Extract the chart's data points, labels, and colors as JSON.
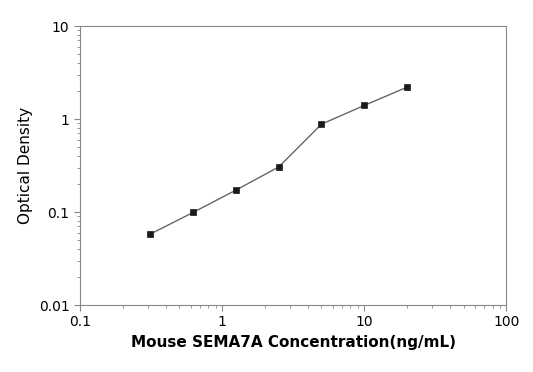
{
  "x_values": [
    0.313,
    0.625,
    1.25,
    2.5,
    5.0,
    10.0,
    20.0
  ],
  "y_values": [
    0.058,
    0.099,
    0.172,
    0.305,
    0.88,
    1.4,
    2.2
  ],
  "xlabel": "Mouse SEMA7A Concentration(ng/mL)",
  "ylabel": "Optical Density",
  "xlim": [
    0.1,
    100
  ],
  "ylim": [
    0.01,
    10
  ],
  "line_color": "#666666",
  "marker_color": "#1a1a1a",
  "marker": "s",
  "marker_size": 5,
  "linewidth": 1.0,
  "background_color": "#ffffff",
  "xlabel_fontsize": 11,
  "ylabel_fontsize": 11,
  "tick_fontsize": 10,
  "spine_color": "#888888"
}
